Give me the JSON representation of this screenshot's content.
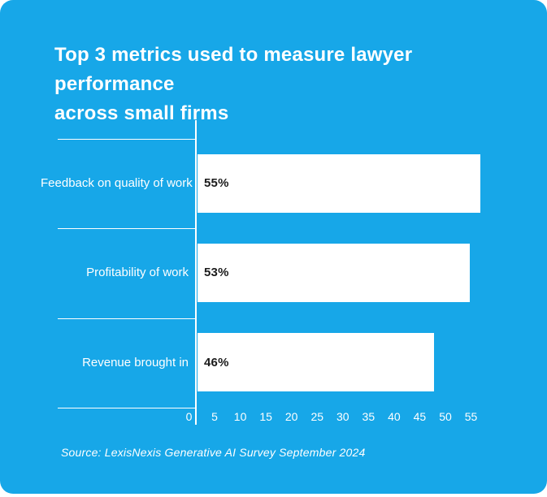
{
  "card": {
    "background_color": "#17A7E8",
    "title_line1": "Top 3 metrics used to measure lawyer performance",
    "title_line2": "across small firms",
    "source": "Source: LexisNexis Generative AI Survey September 2024"
  },
  "chart_data": {
    "type": "bar",
    "orientation": "horizontal",
    "title": "Top 3 metrics used to measure lawyer performance across small firms",
    "categories": [
      "Feedback on quality of work",
      "Profitability of work",
      "Revenue brought in"
    ],
    "values": [
      55,
      53,
      46
    ],
    "value_labels": [
      "55%",
      "53%",
      "46%"
    ],
    "xlabel": "",
    "ylabel": "",
    "xlim": [
      0,
      55
    ],
    "x_ticks": [
      "0",
      "5",
      "10",
      "15",
      "20",
      "25",
      "30",
      "35",
      "40",
      "45",
      "50",
      "55"
    ],
    "grid": "horizontal category separators only",
    "legend": "none",
    "bar_color": "#FFFFFF",
    "category_label_color": "#FFFFFF",
    "value_label_color": "#1B1B1B",
    "axis_color": "#FFFFFF",
    "source": "Source: LexisNexis Generative AI Survey September 2024"
  }
}
